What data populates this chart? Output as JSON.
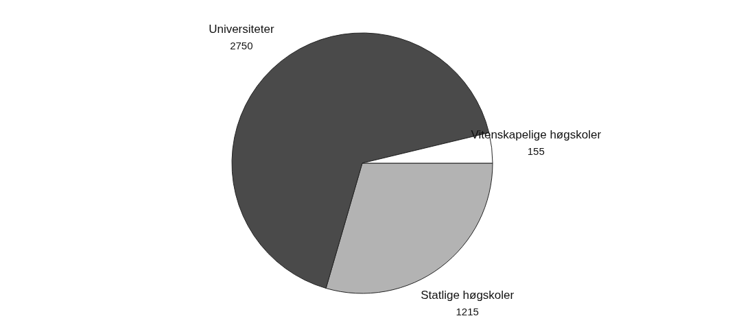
{
  "chart_data": {
    "type": "pie",
    "categories": [
      "Statlige høgskoler",
      "Universiteter",
      "Vitenskapelige høgskoler"
    ],
    "values": [
      1215,
      2750,
      155
    ],
    "colors": [
      "#b3b3b3",
      "#4a4a4a",
      "#ffffff"
    ],
    "data_labels": true,
    "legend": false
  }
}
